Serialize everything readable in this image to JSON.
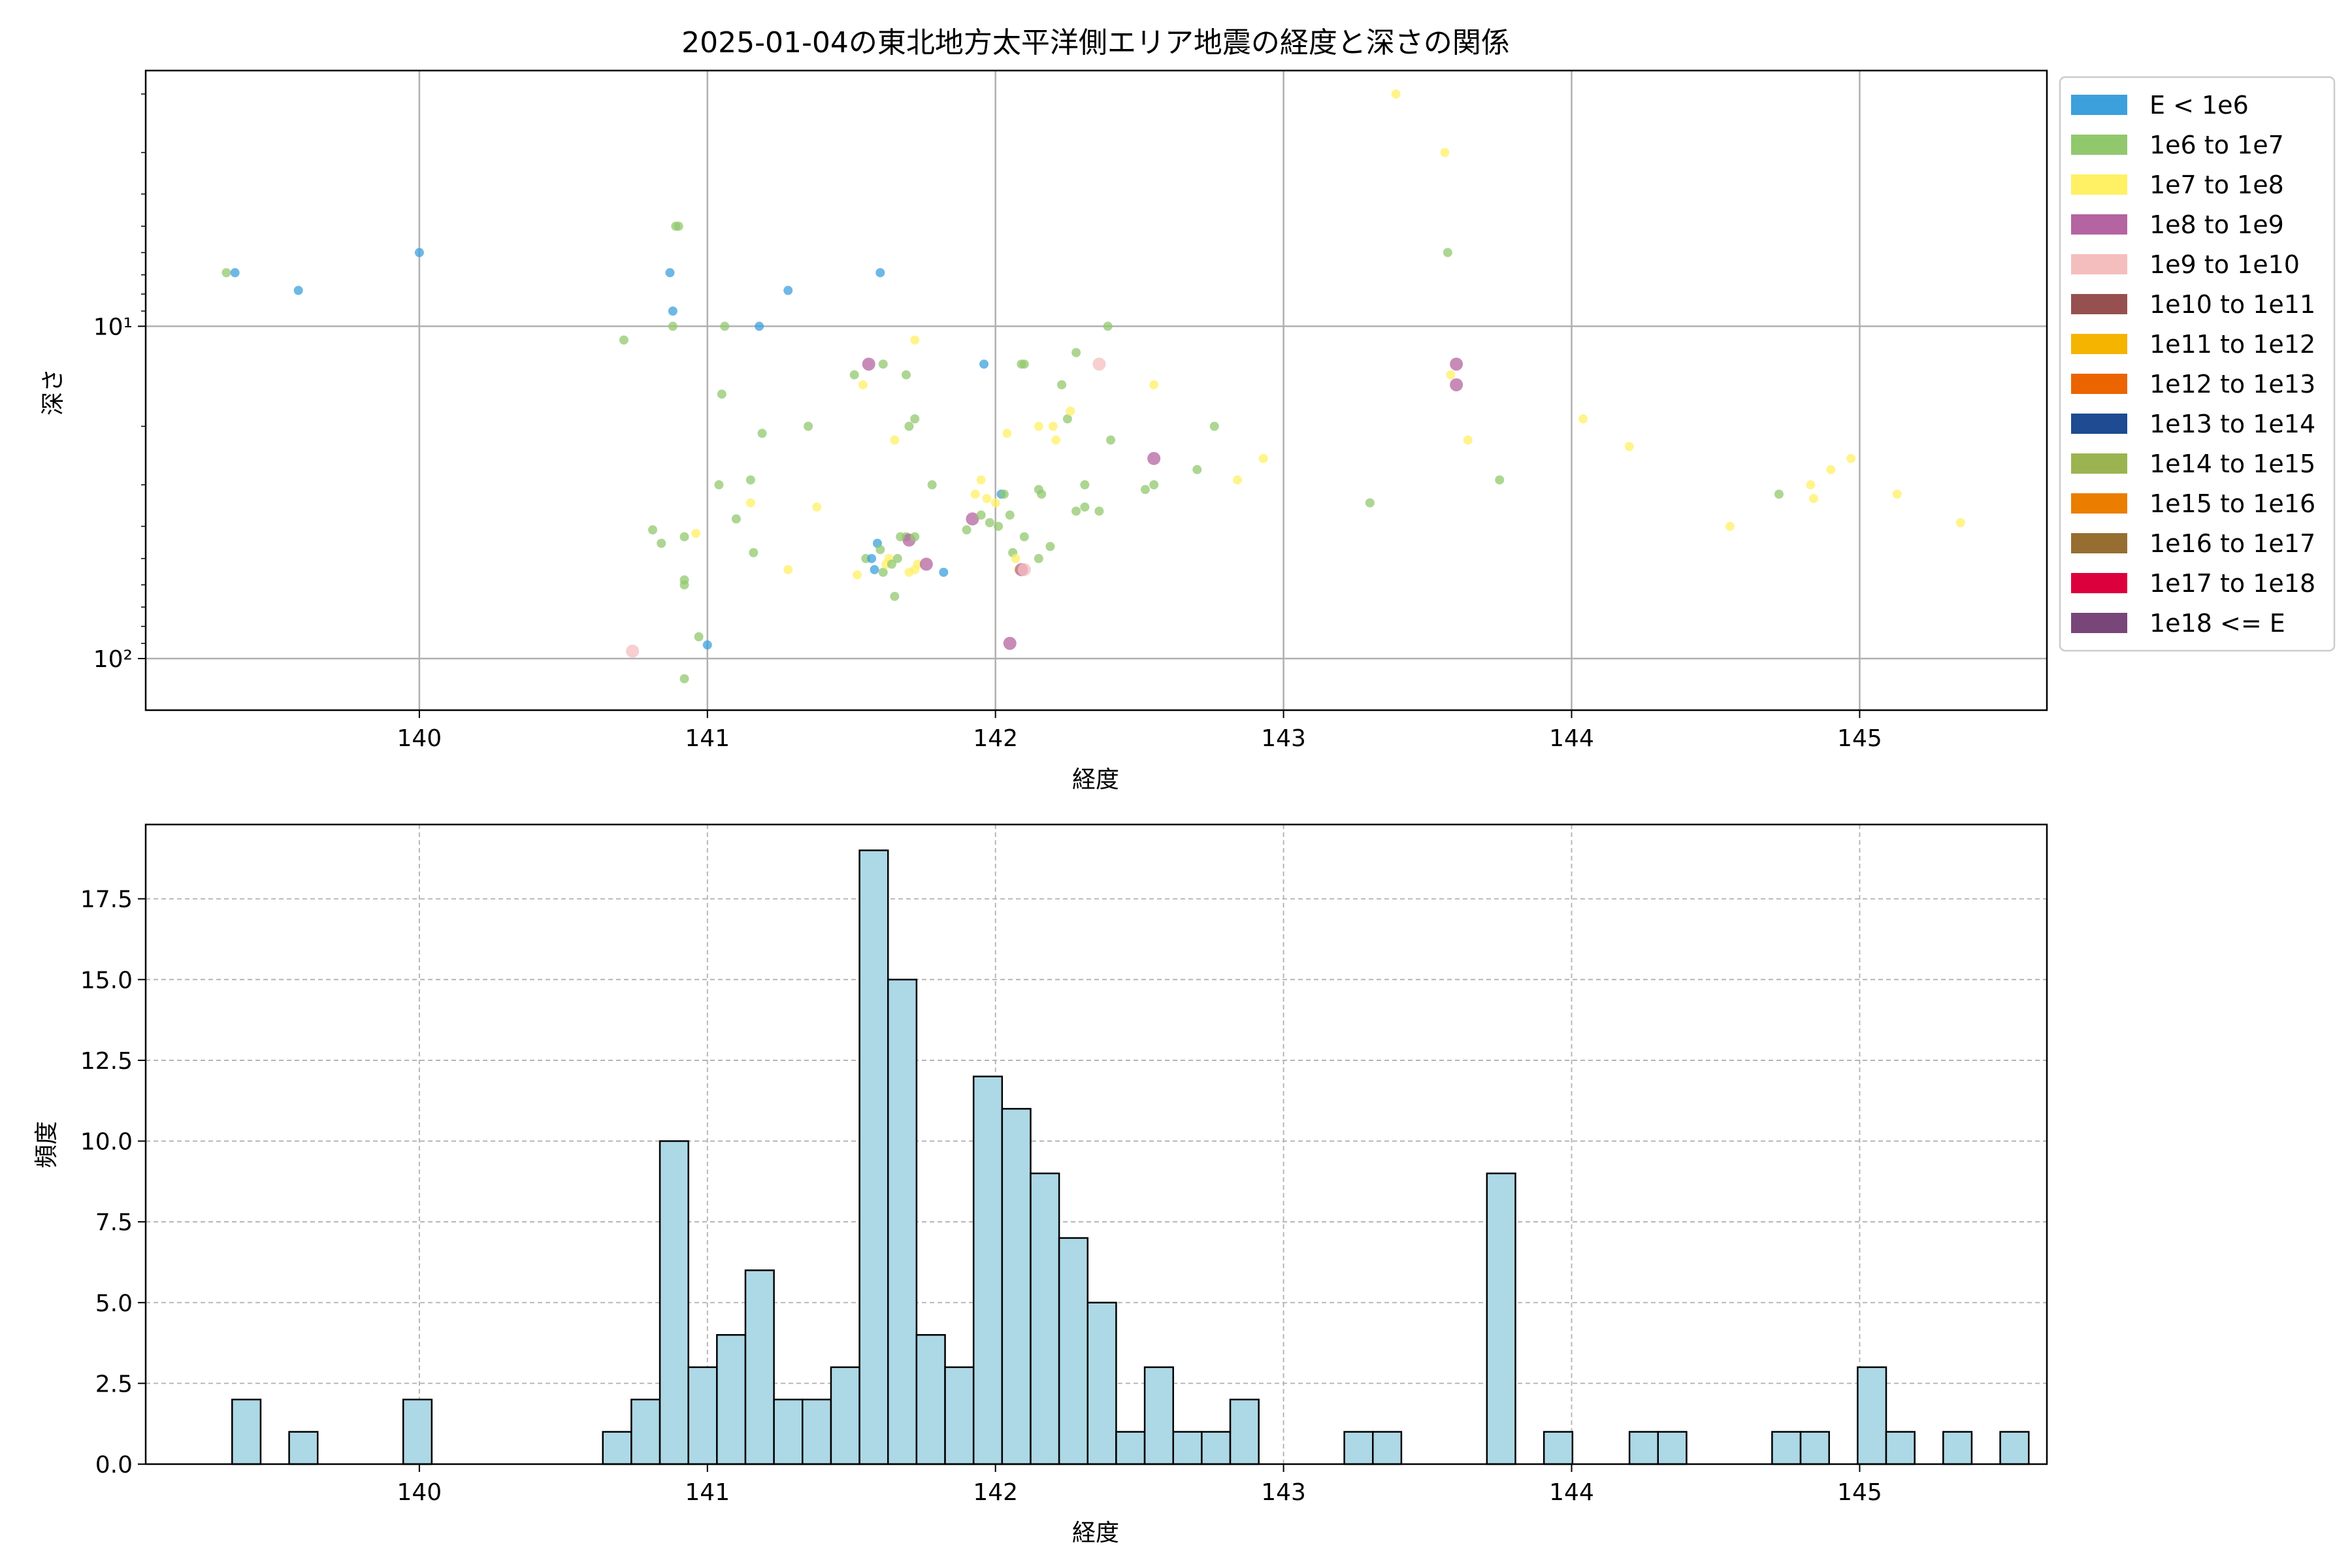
{
  "chart_data": [
    {
      "type": "scatter",
      "title": "2025-01-04の東北地方太平洋側エリア地震の経度と深さの関係",
      "xlabel": "経度",
      "ylabel": "深さ",
      "xlim": [
        139.05,
        145.65
      ],
      "ylim": [
        143,
        1.7
      ],
      "yscale": "log",
      "y_inverted": true,
      "x_ticks": [
        "140",
        "141",
        "142",
        "143",
        "144",
        "145"
      ],
      "x_tick_values": [
        140,
        141,
        142,
        143,
        144,
        145
      ],
      "y_ticks": [
        "10¹",
        "10²"
      ],
      "y_tick_values": [
        10,
        100
      ],
      "grid": true,
      "legend_position": "outside-right",
      "legend": [
        {
          "label": "E < 1e6",
          "color": "#3ca0dc"
        },
        {
          "label": "1e6 to 1e7",
          "color": "#91c86e"
        },
        {
          "label": "1e7 to 1e8",
          "color": "#fff064"
        },
        {
          "label": "1e8 to 1e9",
          "color": "#b464a0"
        },
        {
          "label": "1e9 to 1e10",
          "color": "#f5bebe"
        },
        {
          "label": "1e10 to 1e11",
          "color": "#965050"
        },
        {
          "label": "1e11 to 1e12",
          "color": "#f5b400"
        },
        {
          "label": "1e12 to 1e13",
          "color": "#eb6400"
        },
        {
          "label": "1e13 to 1e14",
          "color": "#1e4b91"
        },
        {
          "label": "1e14 to 1e15",
          "color": "#9bb450"
        },
        {
          "label": "1e15 to 1e16",
          "color": "#eb7d00"
        },
        {
          "label": "1e16 to 1e17",
          "color": "#966e32"
        },
        {
          "label": "1e17 to 1e18",
          "color": "#dc003c"
        },
        {
          "label": "1e18 <= E",
          "color": "#784678"
        }
      ],
      "points": [
        {
          "x": 139.33,
          "y": 6.9,
          "c": 1
        },
        {
          "x": 139.36,
          "y": 6.9,
          "c": 0
        },
        {
          "x": 139.58,
          "y": 7.8,
          "c": 0
        },
        {
          "x": 140.0,
          "y": 6.0,
          "c": 0
        },
        {
          "x": 140.71,
          "y": 11.0,
          "c": 1
        },
        {
          "x": 140.87,
          "y": 6.9,
          "c": 0
        },
        {
          "x": 140.88,
          "y": 9.0,
          "c": 0
        },
        {
          "x": 140.88,
          "y": 10.0,
          "c": 1
        },
        {
          "x": 140.89,
          "y": 5.0,
          "c": 1
        },
        {
          "x": 140.9,
          "y": 5.0,
          "c": 1
        },
        {
          "x": 140.81,
          "y": 41.0,
          "c": 1
        },
        {
          "x": 140.84,
          "y": 45.0,
          "c": 1
        },
        {
          "x": 140.92,
          "y": 43.0,
          "c": 1
        },
        {
          "x": 140.96,
          "y": 42.0,
          "c": 2
        },
        {
          "x": 140.92,
          "y": 58.0,
          "c": 1
        },
        {
          "x": 140.92,
          "y": 60.0,
          "c": 1
        },
        {
          "x": 140.97,
          "y": 86.0,
          "c": 1
        },
        {
          "x": 140.92,
          "y": 115.0,
          "c": 1
        },
        {
          "x": 141.0,
          "y": 91.0,
          "c": 0
        },
        {
          "x": 140.74,
          "y": 95.0,
          "c": 4
        },
        {
          "x": 141.06,
          "y": 10.0,
          "c": 1
        },
        {
          "x": 141.05,
          "y": 16.0,
          "c": 1
        },
        {
          "x": 141.04,
          "y": 30.0,
          "c": 1
        },
        {
          "x": 141.1,
          "y": 38.0,
          "c": 1
        },
        {
          "x": 141.15,
          "y": 29.0,
          "c": 1
        },
        {
          "x": 141.15,
          "y": 34.0,
          "c": 2
        },
        {
          "x": 141.16,
          "y": 48.0,
          "c": 1
        },
        {
          "x": 141.19,
          "y": 21.0,
          "c": 1
        },
        {
          "x": 141.18,
          "y": 10.0,
          "c": 0
        },
        {
          "x": 141.28,
          "y": 7.8,
          "c": 0
        },
        {
          "x": 141.28,
          "y": 54.0,
          "c": 2
        },
        {
          "x": 141.35,
          "y": 20.0,
          "c": 1
        },
        {
          "x": 141.38,
          "y": 35.0,
          "c": 2
        },
        {
          "x": 141.51,
          "y": 14.0,
          "c": 1
        },
        {
          "x": 141.54,
          "y": 15.0,
          "c": 2
        },
        {
          "x": 141.56,
          "y": 13.0,
          "c": 3
        },
        {
          "x": 141.61,
          "y": 13.0,
          "c": 1
        },
        {
          "x": 141.65,
          "y": 22.0,
          "c": 2
        },
        {
          "x": 141.69,
          "y": 14.0,
          "c": 1
        },
        {
          "x": 141.7,
          "y": 20.0,
          "c": 1
        },
        {
          "x": 141.72,
          "y": 19.0,
          "c": 1
        },
        {
          "x": 141.72,
          "y": 11.0,
          "c": 2
        },
        {
          "x": 141.78,
          "y": 30.0,
          "c": 1
        },
        {
          "x": 141.6,
          "y": 6.9,
          "c": 0
        },
        {
          "x": 141.52,
          "y": 56.0,
          "c": 2
        },
        {
          "x": 141.55,
          "y": 50.0,
          "c": 1
        },
        {
          "x": 141.57,
          "y": 50.0,
          "c": 0
        },
        {
          "x": 141.58,
          "y": 54.0,
          "c": 0
        },
        {
          "x": 141.59,
          "y": 45.0,
          "c": 0
        },
        {
          "x": 141.6,
          "y": 47.0,
          "c": 1
        },
        {
          "x": 141.61,
          "y": 55.0,
          "c": 1
        },
        {
          "x": 141.62,
          "y": 52.0,
          "c": 2
        },
        {
          "x": 141.63,
          "y": 50.0,
          "c": 2
        },
        {
          "x": 141.64,
          "y": 52.0,
          "c": 1
        },
        {
          "x": 141.66,
          "y": 50.0,
          "c": 1
        },
        {
          "x": 141.65,
          "y": 65.0,
          "c": 1
        },
        {
          "x": 141.69,
          "y": 43.0,
          "c": 1
        },
        {
          "x": 141.7,
          "y": 44.0,
          "c": 3
        },
        {
          "x": 141.72,
          "y": 54.0,
          "c": 2
        },
        {
          "x": 141.7,
          "y": 55.0,
          "c": 2
        },
        {
          "x": 141.73,
          "y": 52.0,
          "c": 2
        },
        {
          "x": 141.76,
          "y": 52.0,
          "c": 3
        },
        {
          "x": 141.82,
          "y": 55.0,
          "c": 0
        },
        {
          "x": 141.72,
          "y": 43.0,
          "c": 1
        },
        {
          "x": 141.67,
          "y": 43.0,
          "c": 1
        },
        {
          "x": 141.9,
          "y": 41.0,
          "c": 1
        },
        {
          "x": 141.92,
          "y": 38.0,
          "c": 3
        },
        {
          "x": 141.93,
          "y": 32.0,
          "c": 2
        },
        {
          "x": 141.95,
          "y": 29.0,
          "c": 2
        },
        {
          "x": 141.95,
          "y": 37.0,
          "c": 1
        },
        {
          "x": 141.97,
          "y": 33.0,
          "c": 2
        },
        {
          "x": 141.98,
          "y": 39.0,
          "c": 1
        },
        {
          "x": 142.0,
          "y": 34.0,
          "c": 2
        },
        {
          "x": 142.01,
          "y": 40.0,
          "c": 1
        },
        {
          "x": 142.02,
          "y": 32.0,
          "c": 0
        },
        {
          "x": 142.03,
          "y": 32.0,
          "c": 1
        },
        {
          "x": 142.04,
          "y": 21.0,
          "c": 2
        },
        {
          "x": 142.05,
          "y": 37.0,
          "c": 1
        },
        {
          "x": 142.06,
          "y": 48.0,
          "c": 1
        },
        {
          "x": 142.07,
          "y": 50.0,
          "c": 2
        },
        {
          "x": 142.08,
          "y": 54.0,
          "c": 2
        },
        {
          "x": 142.09,
          "y": 54.0,
          "c": 3
        },
        {
          "x": 142.1,
          "y": 43.0,
          "c": 1
        },
        {
          "x": 142.1,
          "y": 54.0,
          "c": 4
        },
        {
          "x": 141.96,
          "y": 13.0,
          "c": 0
        },
        {
          "x": 142.09,
          "y": 13.0,
          "c": 1
        },
        {
          "x": 142.1,
          "y": 13.0,
          "c": 1
        },
        {
          "x": 142.05,
          "y": 90.0,
          "c": 3
        },
        {
          "x": 142.15,
          "y": 20.0,
          "c": 2
        },
        {
          "x": 142.15,
          "y": 31.0,
          "c": 1
        },
        {
          "x": 142.16,
          "y": 32.0,
          "c": 1
        },
        {
          "x": 142.15,
          "y": 50.0,
          "c": 1
        },
        {
          "x": 142.19,
          "y": 46.0,
          "c": 1
        },
        {
          "x": 142.2,
          "y": 20.0,
          "c": 2
        },
        {
          "x": 142.21,
          "y": 22.0,
          "c": 2
        },
        {
          "x": 142.23,
          "y": 15.0,
          "c": 1
        },
        {
          "x": 142.25,
          "y": 19.0,
          "c": 1
        },
        {
          "x": 142.26,
          "y": 18.0,
          "c": 2
        },
        {
          "x": 142.28,
          "y": 12.0,
          "c": 1
        },
        {
          "x": 142.28,
          "y": 36.0,
          "c": 1
        },
        {
          "x": 142.31,
          "y": 30.0,
          "c": 1
        },
        {
          "x": 142.31,
          "y": 35.0,
          "c": 1
        },
        {
          "x": 142.36,
          "y": 36.0,
          "c": 1
        },
        {
          "x": 142.36,
          "y": 13.0,
          "c": 4
        },
        {
          "x": 142.39,
          "y": 10.0,
          "c": 1
        },
        {
          "x": 142.4,
          "y": 22.0,
          "c": 1
        },
        {
          "x": 142.52,
          "y": 31.0,
          "c": 1
        },
        {
          "x": 142.55,
          "y": 25.0,
          "c": 3
        },
        {
          "x": 142.55,
          "y": 30.0,
          "c": 1
        },
        {
          "x": 142.55,
          "y": 15.0,
          "c": 2
        },
        {
          "x": 142.7,
          "y": 27.0,
          "c": 1
        },
        {
          "x": 142.76,
          "y": 20.0,
          "c": 1
        },
        {
          "x": 142.84,
          "y": 29.0,
          "c": 2
        },
        {
          "x": 142.93,
          "y": 25.0,
          "c": 2
        },
        {
          "x": 143.3,
          "y": 34.0,
          "c": 1
        },
        {
          "x": 143.39,
          "y": 2.0,
          "c": 2
        },
        {
          "x": 143.56,
          "y": 3.0,
          "c": 2
        },
        {
          "x": 143.57,
          "y": 6.0,
          "c": 1
        },
        {
          "x": 143.58,
          "y": 14.0,
          "c": 2
        },
        {
          "x": 143.6,
          "y": 13.0,
          "c": 3
        },
        {
          "x": 143.6,
          "y": 15.0,
          "c": 3
        },
        {
          "x": 143.64,
          "y": 22.0,
          "c": 2
        },
        {
          "x": 143.75,
          "y": 29.0,
          "c": 1
        },
        {
          "x": 144.04,
          "y": 19.0,
          "c": 2
        },
        {
          "x": 144.2,
          "y": 23.0,
          "c": 2
        },
        {
          "x": 144.55,
          "y": 40.0,
          "c": 2
        },
        {
          "x": 144.72,
          "y": 32.0,
          "c": 1
        },
        {
          "x": 144.83,
          "y": 30.0,
          "c": 2
        },
        {
          "x": 144.84,
          "y": 33.0,
          "c": 2
        },
        {
          "x": 144.9,
          "y": 27.0,
          "c": 2
        },
        {
          "x": 144.97,
          "y": 25.0,
          "c": 2
        },
        {
          "x": 145.13,
          "y": 32.0,
          "c": 2
        },
        {
          "x": 145.35,
          "y": 39.0,
          "c": 2
        }
      ]
    },
    {
      "type": "bar",
      "title": "",
      "xlabel": "経度",
      "ylabel": "頻度",
      "xlim": [
        139.05,
        145.65
      ],
      "ylim": [
        0,
        19.8
      ],
      "x_ticks": [
        "140",
        "141",
        "142",
        "143",
        "144",
        "145"
      ],
      "x_tick_values": [
        140,
        141,
        142,
        143,
        144,
        145
      ],
      "y_ticks": [
        "0.0",
        "2.5",
        "5.0",
        "7.5",
        "10.0",
        "12.5",
        "15.0",
        "17.5"
      ],
      "y_tick_values": [
        0,
        2.5,
        5,
        7.5,
        10,
        12.5,
        15,
        17.5
      ],
      "grid": "dashed",
      "bar_color": "#add8e6",
      "bin_start": 139.35,
      "bin_width": 0.099,
      "values": [
        2,
        0,
        1,
        0,
        0,
        0,
        2,
        0,
        0,
        0,
        0,
        0,
        0,
        1,
        2,
        10,
        3,
        4,
        6,
        2,
        2,
        3,
        19,
        15,
        4,
        3,
        12,
        11,
        9,
        7,
        5,
        1,
        3,
        1,
        1,
        2,
        0,
        0,
        0,
        1,
        1,
        0,
        0,
        0,
        9,
        0,
        1,
        0,
        0,
        1,
        1,
        0,
        0,
        0,
        1,
        1,
        0,
        3,
        1,
        0,
        1,
        0,
        1
      ]
    }
  ]
}
